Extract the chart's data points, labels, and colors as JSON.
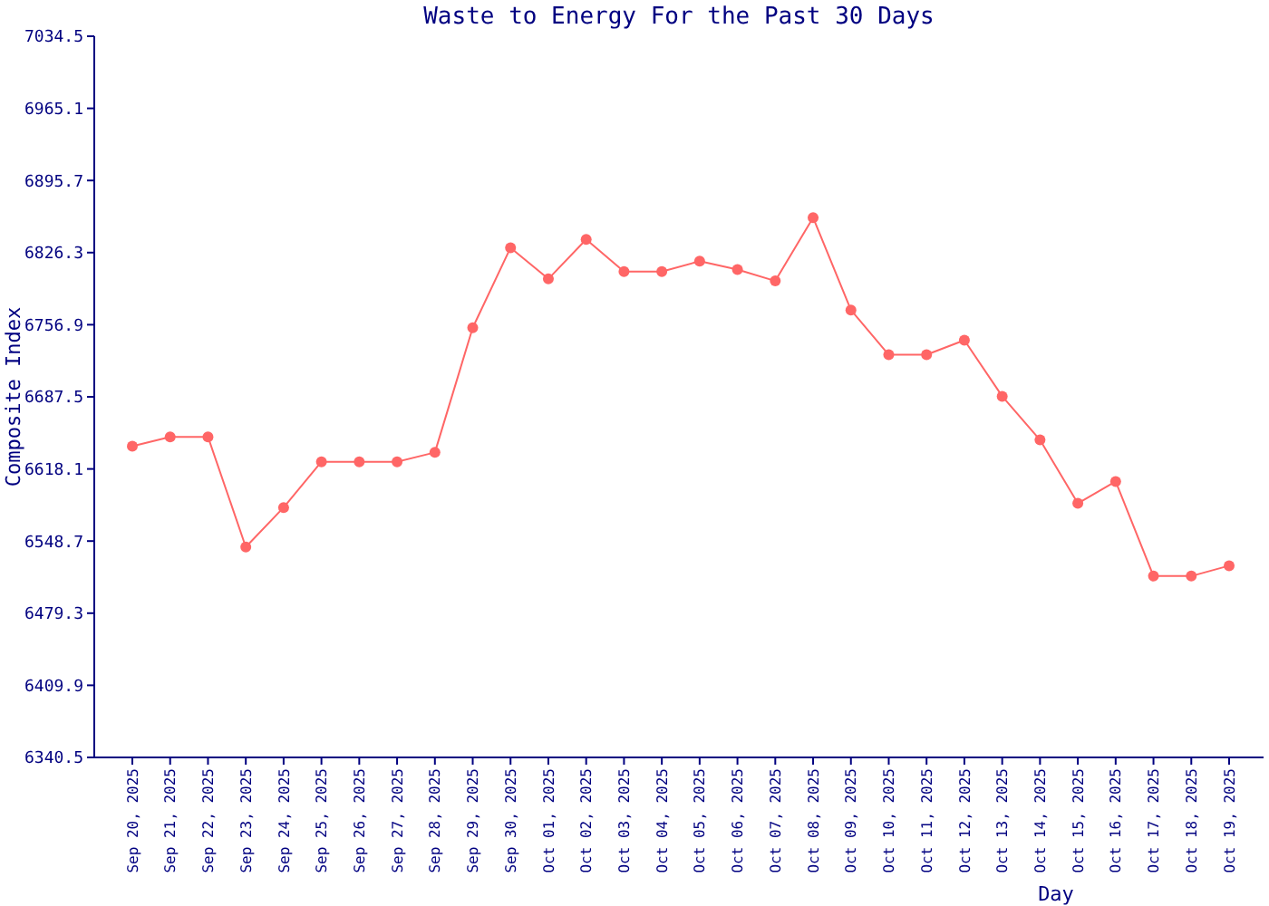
{
  "chart_data": {
    "type": "line",
    "title": "Waste to Energy For the Past 30 Days",
    "xlabel": "Day",
    "ylabel": "Composite Index",
    "categories": [
      "Sep 20, 2025",
      "Sep 21, 2025",
      "Sep 22, 2025",
      "Sep 23, 2025",
      "Sep 24, 2025",
      "Sep 25, 2025",
      "Sep 26, 2025",
      "Sep 27, 2025",
      "Sep 28, 2025",
      "Sep 29, 2025",
      "Sep 30, 2025",
      "Oct 01, 2025",
      "Oct 02, 2025",
      "Oct 03, 2025",
      "Oct 04, 2025",
      "Oct 05, 2025",
      "Oct 06, 2025",
      "Oct 07, 2025",
      "Oct 08, 2025",
      "Oct 09, 2025",
      "Oct 10, 2025",
      "Oct 11, 2025",
      "Oct 12, 2025",
      "Oct 13, 2025",
      "Oct 14, 2025",
      "Oct 15, 2025",
      "Oct 16, 2025",
      "Oct 17, 2025",
      "Oct 18, 2025",
      "Oct 19, 2025"
    ],
    "series": [
      {
        "color": "#ff6666",
        "values": [
          6640,
          6649,
          6649,
          6543,
          6581,
          6625,
          6625,
          6625,
          6634,
          6754,
          6831,
          6801,
          6839,
          6808,
          6808,
          6818,
          6810,
          6799,
          6860,
          6771,
          6728,
          6728,
          6742,
          6688,
          6646,
          6585,
          6606,
          6515,
          6515,
          6525
        ]
      }
    ],
    "ylim": [
      6340.5,
      7034.5
    ],
    "yticks": [
      6340.5,
      6409.9,
      6479.3,
      6548.7,
      6618.1,
      6687.5,
      6756.9,
      6826.3,
      6895.7,
      6965.1,
      7034.5
    ],
    "marker": "circle",
    "line_style": "solid",
    "grid": false
  }
}
